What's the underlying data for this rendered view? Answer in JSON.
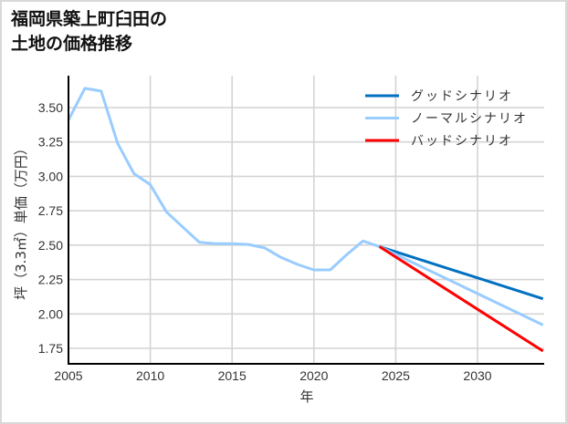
{
  "chart_data": {
    "type": "line",
    "title": "福岡県築上町臼田の土地の価格推移",
    "title_lines": [
      "福岡県築上町臼田の",
      "土地の価格推移"
    ],
    "xlabel": "年",
    "ylabel": "坪（3.3㎡）単価（万円）",
    "xlim": [
      2005,
      2034
    ],
    "ylim": [
      1.63,
      3.73
    ],
    "x_ticks": [
      2005,
      2010,
      2015,
      2020,
      2025,
      2030
    ],
    "x_tick_labels": [
      "2005",
      "2010",
      "2015",
      "2020",
      "2025",
      "2030"
    ],
    "y_ticks": [
      1.75,
      2.0,
      2.25,
      2.5,
      2.75,
      3.0,
      3.25,
      3.5
    ],
    "y_tick_labels": [
      "1.75",
      "2.00",
      "2.25",
      "2.50",
      "2.75",
      "3.00",
      "3.25",
      "3.50"
    ],
    "grid": true,
    "legend_position": "upper right",
    "series": [
      {
        "name": "ノーマルシナリオ",
        "role": "historical",
        "color": "#99CCFF",
        "x": [
          2005,
          2006,
          2007,
          2008,
          2009,
          2010,
          2011,
          2012,
          2013,
          2014,
          2015,
          2016,
          2017,
          2018,
          2019,
          2020,
          2021,
          2022,
          2023,
          2024
        ],
        "values": [
          3.41,
          3.64,
          3.62,
          3.24,
          3.02,
          2.94,
          2.74,
          2.63,
          2.52,
          2.51,
          2.51,
          2.505,
          2.48,
          2.41,
          2.36,
          2.32,
          2.32,
          2.43,
          2.53,
          2.49
        ]
      },
      {
        "name": "グッドシナリオ",
        "color": "#0070C0",
        "x": [
          2024,
          2034
        ],
        "values": [
          2.49,
          2.11
        ]
      },
      {
        "name": "ノーマルシナリオ",
        "color": "#99CCFF",
        "x": [
          2024,
          2034
        ],
        "values": [
          2.49,
          1.92
        ]
      },
      {
        "name": "バッドシナリオ",
        "color": "#FF0000",
        "x": [
          2024,
          2034
        ],
        "values": [
          2.49,
          1.73
        ]
      }
    ],
    "legend": [
      {
        "label": "グッドシナリオ",
        "color": "#0070C0"
      },
      {
        "label": "ノーマルシナリオ",
        "color": "#99CCFF"
      },
      {
        "label": "バッドシナリオ",
        "color": "#FF0000"
      }
    ]
  },
  "colors": {
    "grid": "#d4d4d4",
    "axis": "#000000",
    "frame": "#d9d9d9"
  }
}
